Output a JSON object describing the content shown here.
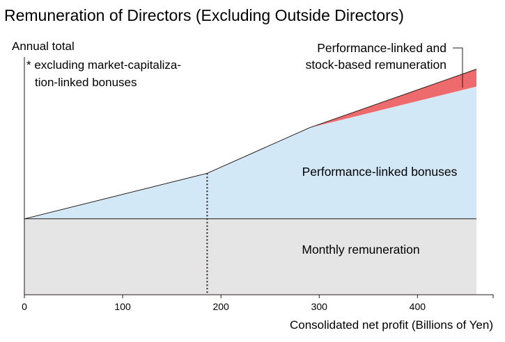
{
  "chart_data": {
    "type": "area",
    "title": "Remuneration of Directors (Excluding Outside Directors)",
    "ylabel": "Annual total",
    "ylabel_note": [
      "* excluding market-capitaliza-",
      "tion-linked bonuses"
    ],
    "xlabel": "Consolidated net profit (Billions of Yen)",
    "x_ticks": [
      0,
      100,
      200,
      300,
      400
    ],
    "xlim": [
      0,
      460
    ],
    "ylim": [
      0,
      100
    ],
    "reference_line_x": 186,
    "series": [
      {
        "name": "Monthly remuneration",
        "color": "#e6e5e6",
        "points": [
          [
            0,
            0
          ],
          [
            460,
            0
          ]
        ],
        "top": [
          [
            0,
            35
          ],
          [
            460,
            35
          ]
        ]
      },
      {
        "name": "Performance-linked bonuses",
        "color": "#d3e8f7",
        "top": [
          [
            0,
            35
          ],
          [
            186,
            56
          ],
          [
            290,
            77
          ],
          [
            460,
            96
          ]
        ]
      },
      {
        "name": "Performance-linked and stock-based remuneration",
        "label_lines": [
          "Performance-linked and",
          "stock-based remuneration"
        ],
        "color": "#ee6b6d",
        "top": [
          [
            290,
            77
          ],
          [
            460,
            104
          ]
        ]
      }
    ],
    "grid": false,
    "legend": "inline-labels"
  }
}
